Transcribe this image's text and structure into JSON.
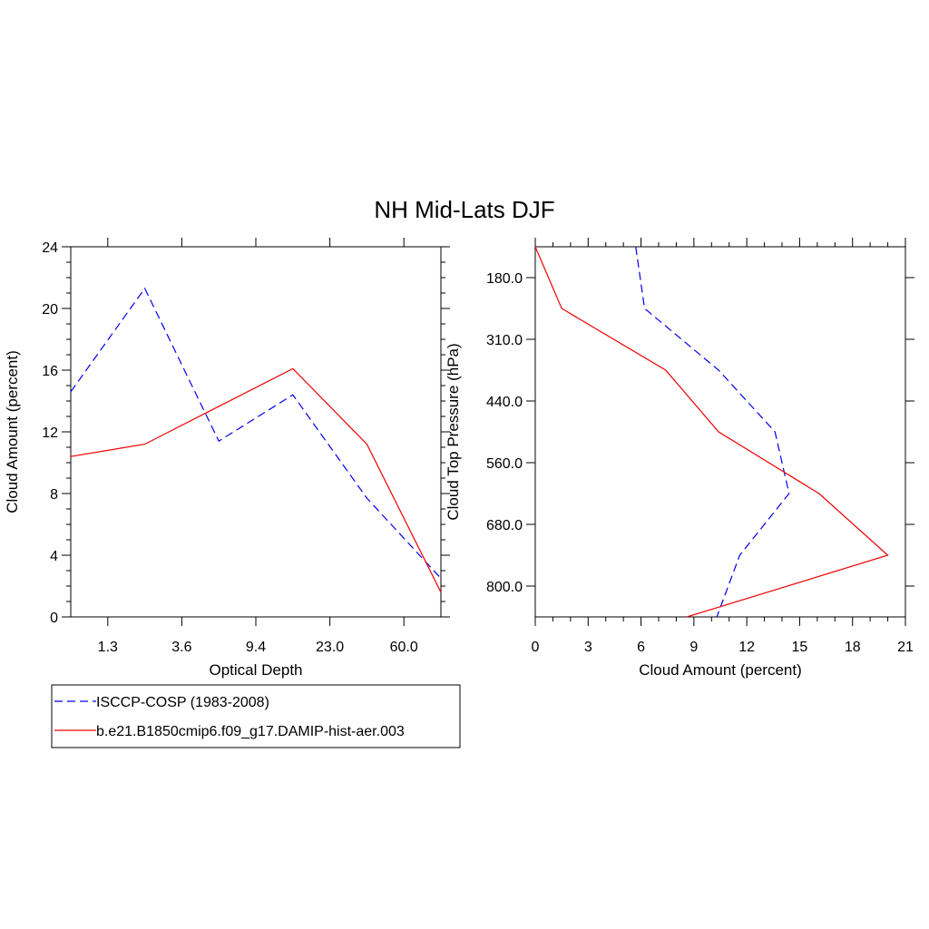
{
  "title": "NH Mid-Lats DJF",
  "colors": {
    "obs": "#0000ee",
    "model": "#ee0000",
    "axis": "#000000"
  },
  "chart_data": [
    {
      "type": "line",
      "xlabel": "Optical Depth",
      "ylabel": "Cloud Amount (percent)",
      "x_tick_labels": [
        "1.3",
        "3.6",
        "9.4",
        "23.0",
        "60.0"
      ],
      "y_ticks": [
        "0",
        "4",
        "8",
        "12",
        "16",
        "20",
        "24"
      ],
      "ylim": [
        0,
        24
      ],
      "series": [
        {
          "name": "ISCCP-COSP (1983-2008)",
          "style": "dashed",
          "values": [
            14.6,
            21.3,
            11.4,
            14.4,
            7.7,
            2.5
          ]
        },
        {
          "name": "b.e21.B1850cmip6.f09_g17.DAMIP-hist-aer.003",
          "style": "solid",
          "values": [
            10.4,
            11.2,
            null,
            16.1,
            11.2,
            1.6
          ]
        }
      ]
    },
    {
      "type": "line",
      "xlabel": "Cloud Amount (percent)",
      "ylabel": "Cloud Top Pressure (hPa)",
      "x_ticks": [
        "0",
        "3",
        "6",
        "9",
        "12",
        "15",
        "18",
        "21"
      ],
      "xlim": [
        0,
        21
      ],
      "y_tick_labels": [
        "180.0",
        "310.0",
        "440.0",
        "560.0",
        "680.0",
        "800.0"
      ],
      "series": [
        {
          "name": "ISCCP-COSP (1983-2008)",
          "style": "dashed",
          "values": [
            5.7,
            6.2,
            10.4,
            13.6,
            14.4,
            11.6,
            10.3
          ]
        },
        {
          "name": "b.e21.B1850cmip6.f09_g17.DAMIP-hist-aer.003",
          "style": "solid",
          "values": [
            0.0,
            1.5,
            7.4,
            10.4,
            16.1,
            20.0,
            8.6
          ]
        }
      ]
    }
  ],
  "legend": [
    {
      "label": "ISCCP-COSP (1983-2008)",
      "style": "dashed"
    },
    {
      "label": "b.e21.B1850cmip6.f09_g17.DAMIP-hist-aer.003",
      "style": "solid"
    }
  ]
}
